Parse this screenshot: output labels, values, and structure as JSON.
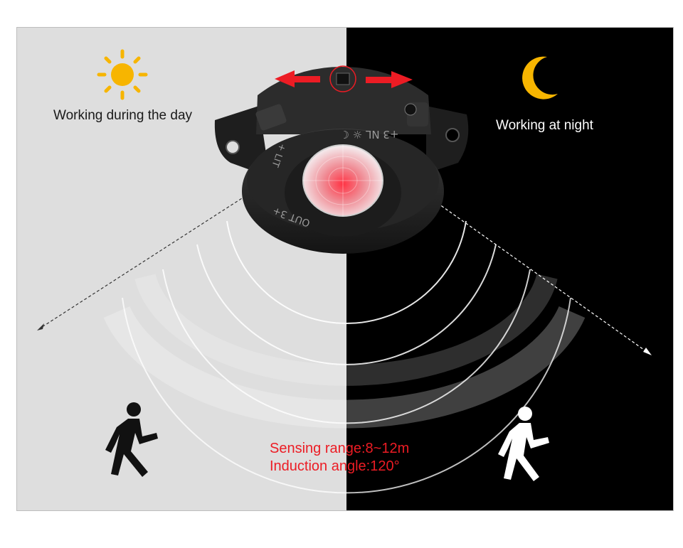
{
  "day": {
    "caption": "Working during the day",
    "icon": "sun-icon",
    "sun_color": "#f7b500",
    "bg": "#dedede"
  },
  "night": {
    "caption": "Working at night",
    "icon": "crescent-moon-icon",
    "moon_color": "#f7b500",
    "bg": "#000000"
  },
  "sensor": {
    "label_top": "+3 NL   ☼  ☾",
    "label_left": "+ LIT",
    "label_out": "OUT 3+",
    "lens_color": "#e83a4a",
    "arrow_color": "#ec1c24"
  },
  "specs": {
    "range": "Sensing range:8~12m",
    "angle": "Induction angle:120°",
    "color": "#ec1c24"
  },
  "figures": {
    "day_person": "walking-person-icon",
    "night_person": "walking-person-icon"
  }
}
